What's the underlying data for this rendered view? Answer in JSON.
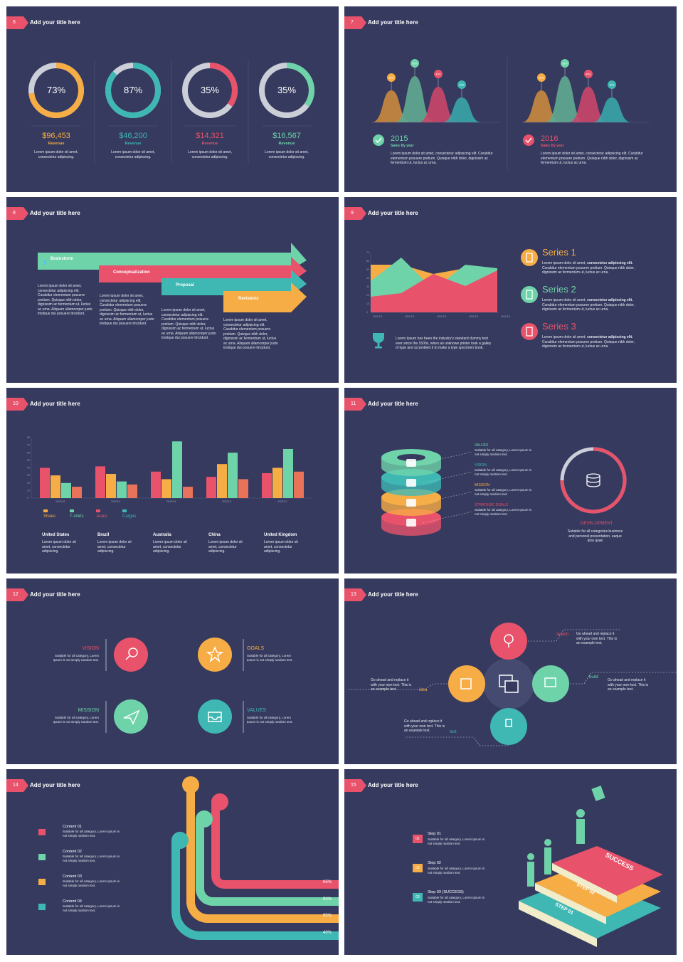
{
  "colors": {
    "bg": "#353a5e",
    "red": "#e8526b",
    "teal": "#3fb8b4",
    "mint": "#6fd3aa",
    "orange": "#f7ad45",
    "gray": "#cccfd8"
  },
  "slide_title": "Add your title here",
  "lorem_short": "Lorem ipsum dolor sit amet, consectetur adipiscing.",
  "lorem_long": "Lorem ipsum dolor sit amet, consectetur adipiscing elit. Curabitur elementum posuere pretium. Quisque nibh dolor, dignissim ac fermentum ut, luctus ac urna.",
  "suitable": "Suitable for all category, Lorem Ipsum is not simply random text.",
  "go_ahead": "Go ahead and replace it with your own text. This is an example text.",
  "s1": {
    "num": "6",
    "items": [
      {
        "pct": "73%",
        "amount": "$96,453",
        "label": "Revenue",
        "color": "#f7ad45",
        "frac": 0.73
      },
      {
        "pct": "87%",
        "amount": "$46,200",
        "label": "Revenue",
        "color": "#3fb8b4",
        "frac": 0.87
      },
      {
        "pct": "35%",
        "amount": "$14,321",
        "label": "Revenue",
        "color": "#e8526b",
        "frac": 0.35
      },
      {
        "pct": "35%",
        "amount": "$16,567",
        "label": "Revenue",
        "color": "#6fd3aa",
        "frac": 0.35
      }
    ]
  },
  "s2": {
    "num": "7",
    "years": [
      {
        "year": "2015",
        "sub": "Sales By year",
        "color": "#6fd3aa"
      },
      {
        "year": "2016",
        "sub": "Sales By year",
        "color": "#e8526b"
      }
    ],
    "pins": [
      "30%",
      "50%",
      "40%",
      "20%"
    ]
  },
  "s3": {
    "num": "8",
    "steps": [
      {
        "label": "Brainstorm",
        "color": "#6fd3aa"
      },
      {
        "label": "Conceptualization",
        "color": "#e8526b"
      },
      {
        "label": "Proposal",
        "color": "#3fb8b4"
      },
      {
        "label": "Revisions",
        "color": "#f7ad45"
      }
    ],
    "text": "Lorem ipsum dolor sit amet, consectetur adipiscing elit. Curabitur elementum posuere pretium. Quisque nibh dolor, dignissim ac fermentum ut, luctus ac urna. Aliquam ullamcorper justo tristique dui posuere tincidunt."
  },
  "s4": {
    "num": "9",
    "xticks": [
      "2002/1/1",
      "2002/1/1",
      "2002/1/1",
      "2002/1/1",
      "2002/1/1"
    ],
    "yticks": [
      "0",
      "10",
      "20",
      "30",
      "40",
      "50",
      "60",
      "70"
    ],
    "series": [
      {
        "name": "Series 1",
        "color": "#f7ad45"
      },
      {
        "name": "Series 2",
        "color": "#6fd3aa"
      },
      {
        "name": "Series 3",
        "color": "#e8526b"
      }
    ],
    "series_text_a": "Lorem ipsum dolor sit amet,",
    "series_text_b": "consectetur adipiscing elit.",
    "series_text_c": "Curabitur elementum posuere pretium. Quisque nibh dolor, dignissim ac fermentum ut, luctus ac urna.",
    "trophy_text": "Lorem Ipsum has been the industry's standard dummy text ever since the 1500s, when an unknown printer took a galley of type and scrambled it to make a type specimen book."
  },
  "chart_data": {
    "type": "bar",
    "categories": [
      "2002/1/1",
      "2002/1/1",
      "2002/1/1",
      "2002/1/1",
      "2002/1/1"
    ],
    "series": [
      {
        "name": "Shoes",
        "values": [
          40,
          42,
          35,
          28,
          33
        ]
      },
      {
        "name": "T-shirts",
        "values": [
          30,
          32,
          25,
          45,
          40
        ]
      },
      {
        "name": "Jeans",
        "values": [
          20,
          22,
          75,
          60,
          65
        ]
      },
      {
        "name": "Cargos",
        "values": [
          15,
          18,
          15,
          25,
          35
        ]
      }
    ],
    "ylim": [
      0,
      80
    ],
    "yticks": [
      "0",
      "10",
      "20",
      "30",
      "40",
      "50",
      "60",
      "70",
      "80"
    ]
  },
  "s5": {
    "num": "10",
    "legend": [
      "Shoes",
      "T-shirts",
      "Jeans",
      "Cargos"
    ],
    "countries": [
      "United States",
      "Brazil",
      "Australia",
      "China",
      "United Kingdom"
    ]
  },
  "s6": {
    "num": "11",
    "layers": [
      {
        "title": "VALUES",
        "color": "#6fd3aa"
      },
      {
        "title": "VISION",
        "color": "#3fb8b4"
      },
      {
        "title": "MISSION",
        "color": "#f7ad45"
      },
      {
        "title": "STRATEGIC GOALS",
        "color": "#e8526b"
      }
    ],
    "dev_title": "DEVELOPMENT",
    "dev_text": "Suitable for all categories business and personal presentation, eaque ipsa quae"
  },
  "s7": {
    "num": "12",
    "items": [
      {
        "title": "VISION",
        "color": "#e8526b",
        "icon": "search-icon"
      },
      {
        "title": "GOALS",
        "color": "#f7ad45",
        "icon": "star-icon"
      },
      {
        "title": "MISSION",
        "color": "#6fd3aa",
        "icon": "paper-plane-icon"
      },
      {
        "title": "VALUES",
        "color": "#3fb8b4",
        "icon": "inbox-icon"
      }
    ]
  },
  "s8": {
    "num": "13",
    "labels": [
      "sketch",
      "build",
      "idea",
      "test"
    ]
  },
  "s9": {
    "num": "14",
    "contents": [
      "Content 01",
      "Content 02",
      "Content 03",
      "Content 04"
    ],
    "percents": [
      "65%",
      "50%",
      "85%",
      "40%"
    ]
  },
  "s10": {
    "num": "15",
    "steps": [
      {
        "num": "01",
        "title": "Step 01"
      },
      {
        "num": "02",
        "title": "Step 02"
      },
      {
        "num": "03",
        "title": "Step 03 (SUCCESS)"
      }
    ],
    "books": [
      "SUCCESS",
      "STEP 02",
      "STEP 01"
    ]
  }
}
